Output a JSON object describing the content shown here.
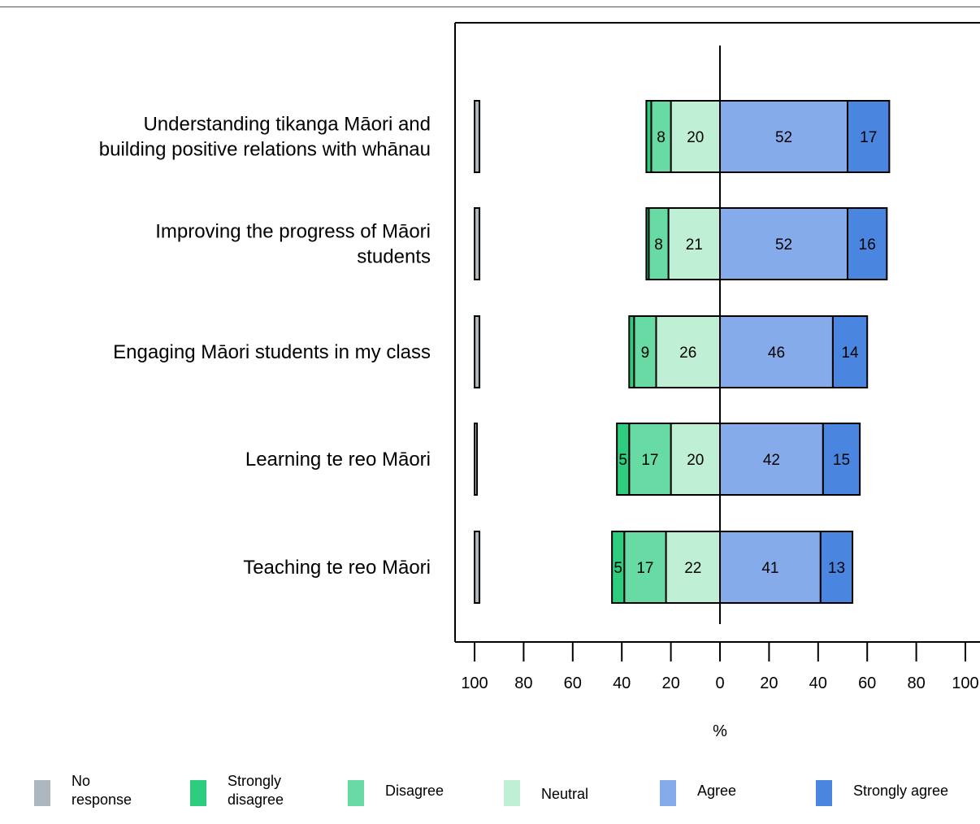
{
  "chart_data": {
    "type": "bar",
    "orientation": "horizontal",
    "stacked": "diverging",
    "categories": [
      "Understanding tikanga Māori and building positive relations with whānau",
      "Improving the progress of Māori students",
      "Engaging Māori students in my class",
      "Learning te reo Māori",
      "Teaching te reo Māori"
    ],
    "category_lines": [
      [
        "Understanding tikanga Māori and",
        "building positive relations with whānau"
      ],
      [
        "Improving the progress of Māori",
        "students"
      ],
      [
        "Engaging Māori students in my class"
      ],
      [
        "Learning te reo Māori"
      ],
      [
        "Teaching te reo Māori"
      ]
    ],
    "series": [
      {
        "name": "No response",
        "values": [
          2,
          2,
          2,
          1,
          2
        ],
        "color": "#adb5bd"
      },
      {
        "name": "Strongly disagree",
        "values": [
          2,
          1,
          2,
          5,
          5
        ],
        "color": "#2ecc7f"
      },
      {
        "name": "Disagree",
        "values": [
          8,
          8,
          9,
          17,
          17
        ],
        "color": "#68dba4"
      },
      {
        "name": "Neutral",
        "values": [
          20,
          21,
          26,
          20,
          22
        ],
        "color": "#bff0d6"
      },
      {
        "name": "Agree",
        "values": [
          52,
          52,
          46,
          42,
          41
        ],
        "color": "#85abea"
      },
      {
        "name": "Strongly agree",
        "values": [
          17,
          16,
          14,
          15,
          13
        ],
        "color": "#4a86e0"
      }
    ],
    "data_labels": [
      [
        "",
        "8",
        "20",
        "52",
        "17"
      ],
      [
        "",
        "8",
        "21",
        "52",
        "16"
      ],
      [
        "",
        "9",
        "26",
        "46",
        "14"
      ],
      [
        "5",
        "17",
        "20",
        "42",
        "15"
      ],
      [
        "5",
        "17",
        "22",
        "41",
        "13"
      ]
    ],
    "xlabel": "%",
    "xlim": [
      -100,
      100
    ],
    "x_ticks": [
      -100,
      -80,
      -60,
      -40,
      -20,
      0,
      20,
      40,
      60,
      80,
      100
    ],
    "x_tick_labels": [
      "100",
      "80",
      "60",
      "40",
      "20",
      "0",
      "20",
      "40",
      "60",
      "80",
      "100"
    ],
    "legend_position": "bottom",
    "grid": false
  },
  "legend": [
    {
      "label": "No\nresponse",
      "color": "#adb5bd"
    },
    {
      "label": "Strongly\ndisagree",
      "color": "#2ecc7f"
    },
    {
      "label": "Disagree",
      "color": "#68dba4"
    },
    {
      "label": "Neutral",
      "color": "#bff0d6"
    },
    {
      "label": "Agree",
      "color": "#85abea"
    },
    {
      "label": "Strongly agree",
      "color": "#4a86e0"
    }
  ]
}
